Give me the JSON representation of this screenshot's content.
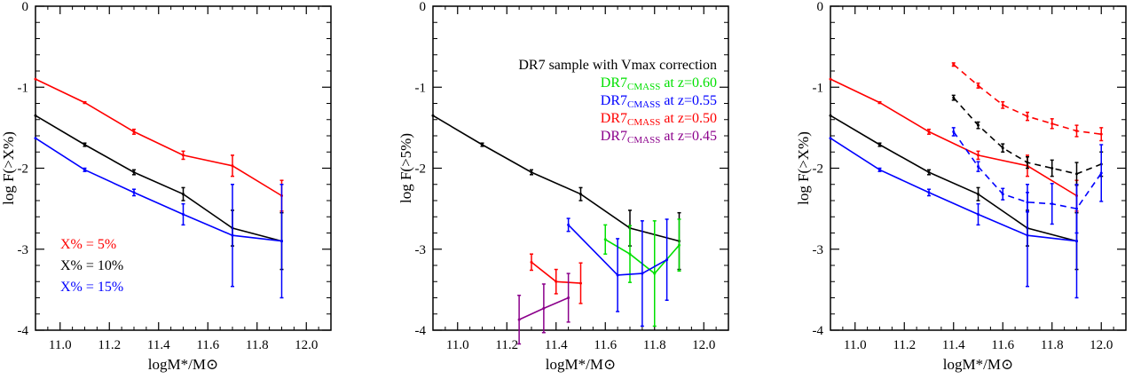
{
  "chart_data": [
    {
      "type": "line",
      "xlabel": "logM*/M⊙",
      "ylabel": "log F(>X%)",
      "xlim": [
        10.9,
        12.1
      ],
      "ylim": [
        -4,
        0
      ],
      "xticks": [
        "11.0",
        "11.2",
        "11.4",
        "11.6",
        "11.8",
        "12.0"
      ],
      "yticks": [
        "0",
        "-1",
        "-2",
        "-3",
        "-4"
      ],
      "legend_position": "bottom-left",
      "legend": [
        {
          "label": "X% = 5%",
          "color": "#ff0000"
        },
        {
          "label": "X% = 10%",
          "color": "#000000"
        },
        {
          "label": "X% = 15%",
          "color": "#0000ff"
        }
      ],
      "series": [
        {
          "color": "#ff0000",
          "dash": false,
          "x": [
            10.9,
            11.1,
            11.3,
            11.5,
            11.7,
            11.9
          ],
          "y": [
            -0.9,
            -1.19,
            -1.55,
            -1.84,
            -1.97,
            -2.34
          ],
          "err": [
            0,
            0.01,
            0.03,
            0.05,
            0.13,
            0.19
          ]
        },
        {
          "color": "#000000",
          "dash": false,
          "x": [
            10.9,
            11.1,
            11.3,
            11.5,
            11.7,
            11.9
          ],
          "y": [
            -1.35,
            -1.71,
            -2.05,
            -2.32,
            -2.74,
            -2.9
          ],
          "err": [
            0,
            0.02,
            0.03,
            0.08,
            0.22,
            0.35
          ]
        },
        {
          "color": "#0000ff",
          "dash": false,
          "x": [
            10.9,
            11.1,
            11.3,
            11.5,
            11.7,
            11.9
          ],
          "y": [
            -1.63,
            -2.02,
            -2.3,
            -2.57,
            -2.83,
            -2.9
          ],
          "err": [
            0,
            0.02,
            0.04,
            0.13,
            0.63,
            0.7
          ]
        }
      ]
    },
    {
      "type": "line",
      "xlabel": "logM*/M⊙",
      "ylabel": "log F(>5%)",
      "xlim": [
        10.9,
        12.1
      ],
      "ylim": [
        -4,
        0
      ],
      "xticks": [
        "11.0",
        "11.2",
        "11.4",
        "11.6",
        "11.8",
        "12.0"
      ],
      "yticks": [
        "0",
        "-1",
        "-2",
        "-3",
        "-4"
      ],
      "legend_position": "top-right",
      "legend_title": "DR7 sample with Vmax correction",
      "legend": [
        {
          "label": "DR7",
          "sub": "CMASS",
          "suffix": " at z=0.60",
          "color": "#00e000"
        },
        {
          "label": "DR7",
          "sub": "CMASS",
          "suffix": " at z=0.55",
          "color": "#0000ff"
        },
        {
          "label": "DR7",
          "sub": "CMASS",
          "suffix": " at z=0.50",
          "color": "#ff0000"
        },
        {
          "label": "DR7",
          "sub": "CMASS",
          "suffix": " at z=0.45",
          "color": "#8b008b"
        }
      ],
      "series": [
        {
          "color": "#000000",
          "dash": false,
          "x": [
            10.9,
            11.1,
            11.3,
            11.5,
            11.7,
            11.9
          ],
          "y": [
            -1.35,
            -1.71,
            -2.05,
            -2.32,
            -2.74,
            -2.9
          ],
          "err": [
            0,
            0.02,
            0.03,
            0.08,
            0.22,
            0.35
          ]
        },
        {
          "color": "#00e000",
          "dash": false,
          "x": [
            11.6,
            11.7,
            11.8,
            11.9
          ],
          "y": [
            -2.88,
            -3.06,
            -3.3,
            -2.95
          ],
          "err": [
            0.18,
            0.35,
            0.65,
            0.32
          ]
        },
        {
          "color": "#0000ff",
          "dash": false,
          "x": [
            11.45,
            11.65,
            11.75,
            11.85
          ],
          "y": [
            -2.7,
            -3.32,
            -3.3,
            -3.13
          ],
          "err": [
            0.08,
            0.45,
            0.65,
            0.5
          ]
        },
        {
          "color": "#ff0000",
          "dash": false,
          "x": [
            11.3,
            11.4,
            11.5
          ],
          "y": [
            -3.16,
            -3.4,
            -3.42
          ],
          "err": [
            0.1,
            0.15,
            0.25
          ]
        },
        {
          "color": "#8b008b",
          "dash": false,
          "x": [
            11.25,
            11.35,
            11.45
          ],
          "y": [
            -3.87,
            -3.73,
            -3.6
          ],
          "err": [
            0.3,
            0.3,
            0.3
          ]
        }
      ]
    },
    {
      "type": "line",
      "xlabel": "logM*/M⊙",
      "ylabel": "log F(>X%)",
      "xlim": [
        10.9,
        12.1
      ],
      "ylim": [
        -4,
        0
      ],
      "xticks": [
        "11.0",
        "11.2",
        "11.4",
        "11.6",
        "11.8",
        "12.0"
      ],
      "yticks": [
        "0",
        "-1",
        "-2",
        "-3",
        "-4"
      ],
      "series": [
        {
          "color": "#ff0000",
          "dash": false,
          "x": [
            10.9,
            11.1,
            11.3,
            11.5,
            11.7,
            11.9
          ],
          "y": [
            -0.9,
            -1.19,
            -1.55,
            -1.84,
            -1.97,
            -2.34
          ],
          "err": [
            0,
            0.01,
            0.03,
            0.05,
            0.13,
            0.19
          ]
        },
        {
          "color": "#000000",
          "dash": false,
          "x": [
            10.9,
            11.1,
            11.3,
            11.5,
            11.7,
            11.9
          ],
          "y": [
            -1.35,
            -1.71,
            -2.05,
            -2.32,
            -2.74,
            -2.9
          ],
          "err": [
            0,
            0.02,
            0.03,
            0.08,
            0.22,
            0.35
          ]
        },
        {
          "color": "#0000ff",
          "dash": false,
          "x": [
            10.9,
            11.1,
            11.3,
            11.5,
            11.7,
            11.9
          ],
          "y": [
            -1.63,
            -2.02,
            -2.3,
            -2.57,
            -2.83,
            -2.9
          ],
          "err": [
            0,
            0.02,
            0.04,
            0.13,
            0.63,
            0.7
          ]
        },
        {
          "color": "#ff0000",
          "dash": true,
          "x": [
            11.4,
            11.5,
            11.6,
            11.7,
            11.8,
            11.9,
            12.0
          ],
          "y": [
            -0.72,
            -0.98,
            -1.22,
            -1.36,
            -1.45,
            -1.54,
            -1.58
          ],
          "err": [
            0.02,
            0.03,
            0.04,
            0.05,
            0.06,
            0.07,
            0.08
          ]
        },
        {
          "color": "#000000",
          "dash": true,
          "x": [
            11.4,
            11.5,
            11.6,
            11.7,
            11.8,
            11.9,
            12.0
          ],
          "y": [
            -1.13,
            -1.47,
            -1.75,
            -1.93,
            -2.0,
            -2.07,
            -1.95
          ],
          "err": [
            0.03,
            0.04,
            0.05,
            0.07,
            0.1,
            0.14,
            0.15
          ]
        },
        {
          "color": "#0000ff",
          "dash": true,
          "x": [
            11.4,
            11.5,
            11.6,
            11.7,
            11.8,
            11.9,
            12.0
          ],
          "y": [
            -1.55,
            -1.98,
            -2.32,
            -2.42,
            -2.44,
            -2.5,
            -2.06
          ],
          "err": [
            0.05,
            0.06,
            0.07,
            0.12,
            0.25,
            0.3,
            0.35
          ]
        }
      ]
    }
  ]
}
